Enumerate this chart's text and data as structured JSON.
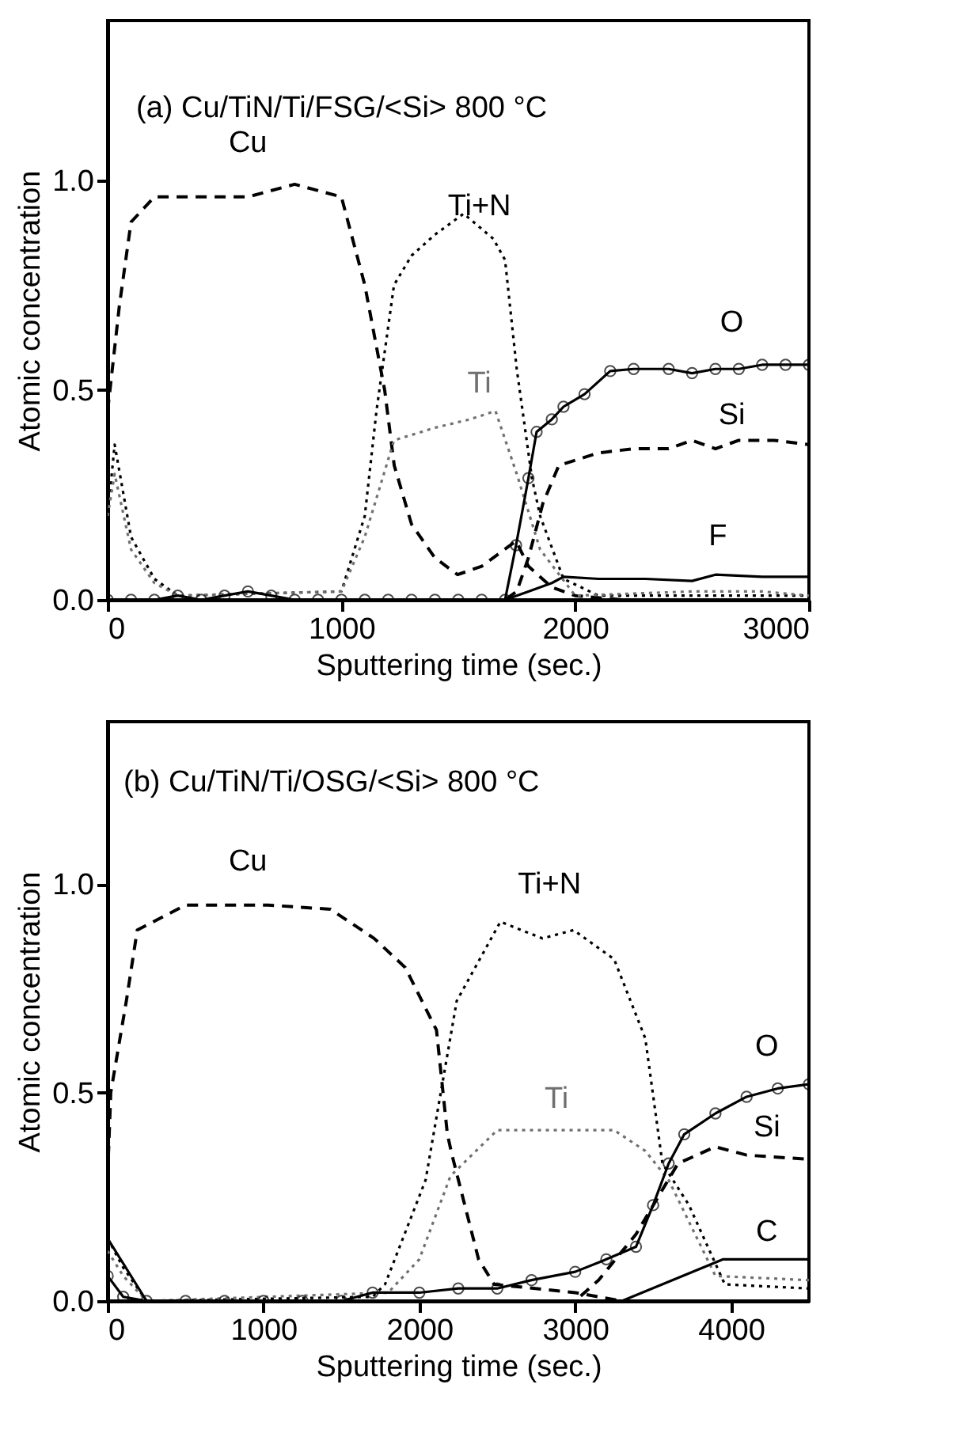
{
  "chart_data": [
    {
      "type": "line",
      "title": "(a) Cu/TiN/Ti/FSG/<Si> 800 °C",
      "xlabel": "Sputtering time (sec.)",
      "ylabel": "Atomic concentration",
      "xlim": [
        0,
        3000
      ],
      "xticks": [
        0,
        1000,
        2000,
        3000
      ],
      "ylim": [
        0,
        1.38
      ],
      "yticks": [
        {
          "value": 0,
          "label": "0.0"
        },
        {
          "value": 0.5,
          "label": "0.5"
        },
        {
          "value": 1,
          "label": "1.0"
        }
      ],
      "grid": false,
      "series": [
        {
          "name": "Cu",
          "color": "#000000",
          "line_style": "dashed",
          "marker": "none",
          "x": [
            0,
            50,
            100,
            200,
            400,
            600,
            800,
            1000,
            1100,
            1185,
            1226,
            1300,
            1400,
            1497,
            1600,
            1747,
            1800,
            1900,
            2000,
            2200,
            3000
          ],
          "values": [
            0.45,
            0.7,
            0.9,
            0.96,
            0.96,
            0.96,
            0.99,
            0.96,
            0.75,
            0.5,
            0.32,
            0.18,
            0.1,
            0.06,
            0.08,
            0.14,
            0.08,
            0.03,
            0.01,
            0.0,
            0.0
          ]
        },
        {
          "name": "Ti+N",
          "color": "#000000",
          "line_style": "dotted",
          "marker": "none",
          "x": [
            0,
            30,
            100,
            200,
            300,
            1000,
            1100,
            1150,
            1225,
            1300,
            1400,
            1523,
            1650,
            1700,
            1750,
            1815,
            1850,
            1950,
            2100,
            3000
          ],
          "values": [
            0.2,
            0.37,
            0.15,
            0.05,
            0.01,
            0.02,
            0.2,
            0.45,
            0.75,
            0.82,
            0.87,
            0.92,
            0.86,
            0.81,
            0.55,
            0.29,
            0.2,
            0.05,
            0.01,
            0.01
          ]
        },
        {
          "name": "Ti",
          "color": "#707070",
          "line_style": "dotted",
          "marker": "none",
          "x": [
            0,
            30,
            100,
            200,
            300,
            1000,
            1100,
            1225,
            1400,
            1550,
            1659,
            1750,
            1850,
            2000,
            2500,
            2800,
            3000
          ],
          "values": [
            0.2,
            0.3,
            0.12,
            0.04,
            0.01,
            0.02,
            0.15,
            0.38,
            0.41,
            0.43,
            0.45,
            0.3,
            0.12,
            0.01,
            0.02,
            0.02,
            0.01
          ]
        },
        {
          "name": "O",
          "color": "#000000",
          "line_style": "solid",
          "marker": "circle",
          "x": [
            0,
            100,
            200,
            300,
            400,
            500,
            600,
            700,
            800,
            900,
            1000,
            1100,
            1200,
            1300,
            1400,
            1500,
            1600,
            1700,
            1747,
            1800,
            1835,
            1900,
            1950,
            2040,
            2150,
            2250,
            2400,
            2500,
            2600,
            2700,
            2800,
            2900,
            3000
          ],
          "values": [
            0.0,
            0.0,
            0.0,
            0.01,
            0.0,
            0.01,
            0.02,
            0.01,
            0.0,
            0.0,
            0.0,
            0.0,
            0.0,
            0.0,
            0.0,
            0.0,
            0.0,
            0.0,
            0.13,
            0.29,
            0.4,
            0.43,
            0.46,
            0.49,
            0.545,
            0.55,
            0.55,
            0.54,
            0.55,
            0.55,
            0.56,
            0.56,
            0.56
          ]
        },
        {
          "name": "Si",
          "color": "#000000",
          "line_style": "dashed",
          "marker": "none",
          "x": [
            0,
            1700,
            1750,
            1800,
            1862,
            1930,
            2100,
            2250,
            2400,
            2500,
            2600,
            2700,
            2850,
            3000
          ],
          "values": [
            0.0,
            0.0,
            0.02,
            0.1,
            0.23,
            0.32,
            0.35,
            0.36,
            0.36,
            0.38,
            0.36,
            0.38,
            0.38,
            0.37
          ]
        },
        {
          "name": "F",
          "color": "#000000",
          "line_style": "solid",
          "marker": "none",
          "x": [
            0,
            1700,
            1800,
            1900,
            1950,
            2100,
            2300,
            2500,
            2600,
            2800,
            3000
          ],
          "values": [
            0.0,
            0.0,
            0.02,
            0.04,
            0.055,
            0.05,
            0.05,
            0.045,
            0.06,
            0.055,
            0.055
          ]
        }
      ]
    },
    {
      "type": "line",
      "title": "(b) Cu/TiN/Ti/OSG/<Si> 800 °C",
      "xlabel": "Sputtering time (sec.)",
      "ylabel": "Atomic concentration",
      "xlim": [
        0,
        4500
      ],
      "xticks": [
        0,
        1000,
        2000,
        3000,
        4000
      ],
      "ylim": [
        0,
        1.39
      ],
      "yticks": [
        {
          "value": 0,
          "label": "0.0"
        },
        {
          "value": 0.5,
          "label": "0.5"
        },
        {
          "value": 1,
          "label": "1.0"
        }
      ],
      "grid": false,
      "series": [
        {
          "name": "Cu",
          "color": "#000000",
          "line_style": "dashed",
          "marker": "none",
          "x": [
            0,
            20,
            120,
            190,
            500,
            1030,
            1430,
            1710,
            1910,
            2110,
            2180,
            2210,
            2380,
            2480,
            3000,
            3300,
            4500
          ],
          "values": [
            0.3,
            0.5,
            0.72,
            0.89,
            0.95,
            0.95,
            0.94,
            0.87,
            0.8,
            0.65,
            0.4,
            0.35,
            0.1,
            0.04,
            0.02,
            0.0,
            0.0
          ]
        },
        {
          "name": "Ti+N",
          "color": "#000000",
          "line_style": "dotted",
          "marker": "none",
          "x": [
            0,
            100,
            250,
            1700,
            1780,
            2040,
            2240,
            2520,
            2790,
            2990,
            3250,
            3450,
            3560,
            3730,
            3960,
            4500
          ],
          "values": [
            0.15,
            0.08,
            0.0,
            0.01,
            0.04,
            0.29,
            0.72,
            0.91,
            0.87,
            0.89,
            0.82,
            0.63,
            0.33,
            0.23,
            0.04,
            0.03
          ]
        },
        {
          "name": "Ti",
          "color": "#707070",
          "line_style": "dotted",
          "marker": "none",
          "x": [
            0,
            100,
            250,
            1800,
            2000,
            2200,
            2500,
            2800,
            3250,
            3450,
            3600,
            3900,
            4500
          ],
          "values": [
            0.12,
            0.06,
            0.0,
            0.02,
            0.1,
            0.3,
            0.41,
            0.41,
            0.41,
            0.36,
            0.29,
            0.06,
            0.05
          ]
        },
        {
          "name": "O",
          "color": "#000000",
          "line_style": "solid",
          "marker": "circle",
          "x": [
            0,
            100,
            250,
            500,
            750,
            1000,
            1250,
            1500,
            1700,
            2000,
            2250,
            2500,
            2720,
            3000,
            3200,
            3390,
            3500,
            3600,
            3700,
            3900,
            4100,
            4300,
            4500
          ],
          "values": [
            0.06,
            0.01,
            0.0,
            0.0,
            0.0,
            0.0,
            0.0,
            0.0,
            0.02,
            0.02,
            0.03,
            0.03,
            0.05,
            0.07,
            0.1,
            0.13,
            0.23,
            0.33,
            0.4,
            0.45,
            0.49,
            0.51,
            0.52
          ]
        },
        {
          "name": "Si",
          "color": "#000000",
          "line_style": "dashed",
          "marker": "none",
          "x": [
            0,
            3000,
            3150,
            3390,
            3660,
            3900,
            4100,
            4500
          ],
          "values": [
            0.0,
            0.0,
            0.05,
            0.16,
            0.33,
            0.37,
            0.35,
            0.34
          ]
        },
        {
          "name": "C",
          "color": "#000000",
          "line_style": "solid",
          "marker": "none",
          "x": [
            0,
            250,
            3300,
            3950,
            4500
          ],
          "values": [
            0.15,
            0.0,
            0.0,
            0.1,
            0.1
          ]
        }
      ]
    }
  ]
}
